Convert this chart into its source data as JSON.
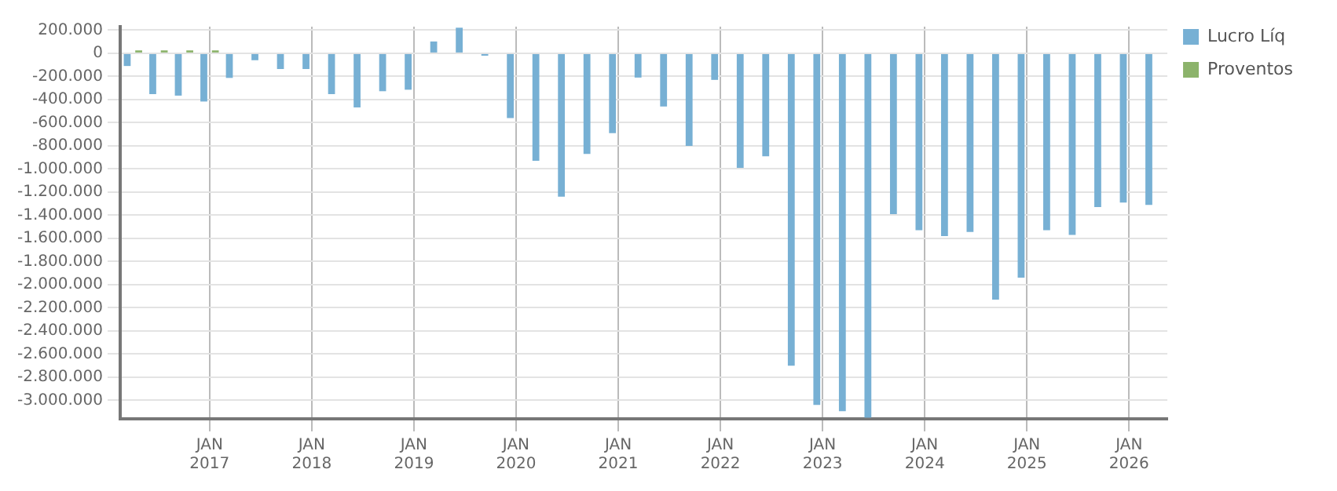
{
  "chart_data": {
    "type": "bar",
    "categories": [
      null,
      null,
      null,
      "JAN 2017",
      null,
      null,
      null,
      "JAN 2018",
      null,
      null,
      null,
      "JAN 2019",
      null,
      null,
      null,
      "JAN 2020",
      null,
      null,
      null,
      "JAN 2021",
      null,
      null,
      null,
      "JAN 2022",
      null,
      null,
      null,
      "JAN 2023",
      null,
      null,
      null,
      "JAN 2024",
      null,
      null,
      null,
      "JAN 2025",
      null,
      null,
      null,
      "JAN 2026",
      null
    ],
    "series": [
      {
        "name": "Lucro Líq",
        "color": "#77b0d4",
        "values": [
          -110000,
          -353000,
          -366000,
          -417000,
          -213000,
          -60000,
          -136000,
          -136000,
          -353000,
          -468000,
          -328000,
          -315000,
          102000,
          221000,
          -21000,
          -560000,
          -930000,
          -1240000,
          -870000,
          -690000,
          -210000,
          -460000,
          -800000,
          -230000,
          -990000,
          -890000,
          -2700000,
          -3040000,
          -3094000,
          -3150000,
          -1390000,
          -1530000,
          -1580000,
          -1545000,
          -2130000,
          -1940000,
          -1530000,
          -1570000,
          -1330000,
          -1290000,
          -1310000
        ]
      },
      {
        "name": "Proventos",
        "color": "#8cb36b",
        "values": [
          25000,
          25000,
          25000,
          25000,
          0,
          0,
          0,
          0,
          0,
          0,
          0,
          0,
          0,
          0,
          0,
          0,
          0,
          0,
          0,
          0,
          0,
          0,
          0,
          0,
          0,
          0,
          0,
          0,
          0,
          0,
          0,
          0,
          0,
          0,
          0,
          0,
          0,
          0,
          0,
          0,
          0
        ]
      }
    ],
    "ylim": [
      -3160000,
      230000
    ],
    "yticks": [
      {
        "value": 200000,
        "label": "200.000"
      },
      0,
      {
        "value": -200000,
        "label": "-200.000"
      },
      {
        "value": -400000,
        "label": "-400.000"
      },
      {
        "value": -600000,
        "label": "-600.000"
      },
      {
        "value": -800000,
        "label": "-800.000"
      },
      {
        "value": -1000000,
        "label": "-1.000.000"
      },
      {
        "value": -1200000,
        "label": "-1.200.000"
      },
      {
        "value": -1400000,
        "label": "-1.400.000"
      },
      {
        "value": -1600000,
        "label": "-1.600.000"
      },
      {
        "value": -1800000,
        "label": "-1.800.000"
      },
      {
        "value": -2000000,
        "label": "-2.000.000"
      },
      {
        "value": -2200000,
        "label": "-2.200.000"
      },
      {
        "value": -2400000,
        "label": "-2.400.000"
      },
      {
        "value": -2600000,
        "label": "-2.600.000"
      },
      {
        "value": -2800000,
        "label": "-2.800.000"
      },
      {
        "value": -3000000,
        "label": "-3.000.000"
      }
    ],
    "grid": true,
    "legend": "top right"
  }
}
